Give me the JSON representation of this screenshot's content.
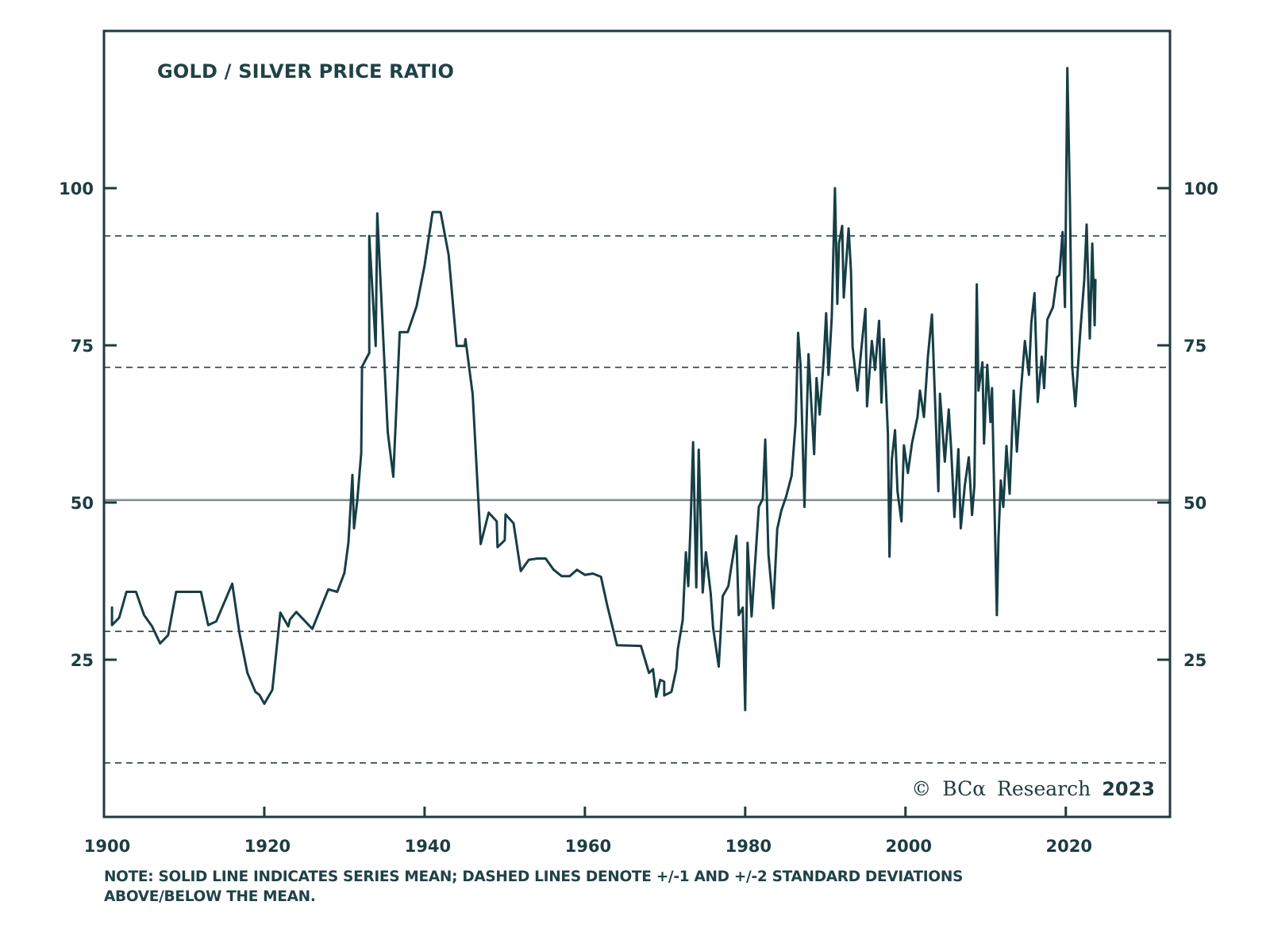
{
  "chart_data": {
    "type": "line",
    "title": "GOLD / SILVER PRICE RATIO",
    "xlabel": "",
    "ylabel": "",
    "xlim": [
      1900,
      2033
    ],
    "ylim": [
      0,
      125
    ],
    "grid": false,
    "legend": "none",
    "x_ticks": [
      1900,
      1920,
      1940,
      1960,
      1980,
      2000,
      2020
    ],
    "x_tick_labels": [
      "1900",
      "1920",
      "1940",
      "1960",
      "1980",
      "2000",
      "2020"
    ],
    "y_ticks": [
      25,
      50,
      75,
      100
    ],
    "y_tick_labels_left": [
      "25",
      "50",
      "75",
      "100"
    ],
    "y_tick_labels_right": [
      "25",
      "50",
      "75",
      "100"
    ],
    "reference_lines": [
      {
        "name": "mean",
        "style": "solid",
        "value": 50.4
      },
      {
        "name": "+1 standard deviation",
        "style": "dashed",
        "value": 71.5
      },
      {
        "name": "+2 standard deviations",
        "style": "dashed",
        "value": 92.4
      },
      {
        "name": "-1 standard deviation",
        "style": "dashed",
        "value": 29.5
      },
      {
        "name": "-2 standard deviations",
        "style": "dashed",
        "value": 8.6
      }
    ],
    "series": [
      {
        "name": "Gold / Silver price ratio",
        "color": "#163e45",
        "points": [
          [
            1901.0,
            33.3
          ],
          [
            1901.0,
            30.5
          ],
          [
            1901.9,
            31.7
          ],
          [
            1902.8,
            35.8
          ],
          [
            1904.0,
            35.8
          ],
          [
            1905.0,
            32.1
          ],
          [
            1906.0,
            30.3
          ],
          [
            1907.0,
            27.6
          ],
          [
            1908.0,
            28.9
          ],
          [
            1909.0,
            35.8
          ],
          [
            1912.1,
            35.8
          ],
          [
            1913.0,
            30.5
          ],
          [
            1914.0,
            31.1
          ],
          [
            1916.0,
            37.1
          ],
          [
            1916.9,
            29.2
          ],
          [
            1917.9,
            22.9
          ],
          [
            1918.9,
            19.9
          ],
          [
            1919.4,
            19.4
          ],
          [
            1920.0,
            18.0
          ],
          [
            1921.0,
            20.2
          ],
          [
            1922.0,
            32.5
          ],
          [
            1923.0,
            30.3
          ],
          [
            1923.2,
            31.4
          ],
          [
            1924.0,
            32.6
          ],
          [
            1926.0,
            29.9
          ],
          [
            1928.0,
            36.2
          ],
          [
            1929.1,
            35.8
          ],
          [
            1930.0,
            38.8
          ],
          [
            1930.5,
            43.7
          ],
          [
            1931.0,
            54.4
          ],
          [
            1931.2,
            45.9
          ],
          [
            1931.6,
            50.3
          ],
          [
            1932.1,
            57.9
          ],
          [
            1932.2,
            71.6
          ],
          [
            1933.1,
            73.8
          ],
          [
            1933.1,
            92.4
          ],
          [
            1933.9,
            74.9
          ],
          [
            1934.1,
            96.0
          ],
          [
            1935.4,
            61.2
          ],
          [
            1936.1,
            54.1
          ],
          [
            1936.9,
            77.1
          ],
          [
            1937.9,
            77.1
          ],
          [
            1939.0,
            81.2
          ],
          [
            1940.0,
            87.7
          ],
          [
            1941.0,
            96.2
          ],
          [
            1942.0,
            96.2
          ],
          [
            1943.0,
            89.4
          ],
          [
            1944.0,
            74.9
          ],
          [
            1945.0,
            74.9
          ],
          [
            1945.1,
            76.0
          ],
          [
            1946.0,
            67.2
          ],
          [
            1947.0,
            43.4
          ],
          [
            1948.0,
            48.4
          ],
          [
            1949.0,
            47.0
          ],
          [
            1949.1,
            42.9
          ],
          [
            1950.0,
            44.0
          ],
          [
            1950.1,
            48.1
          ],
          [
            1951.1,
            46.7
          ],
          [
            1952.0,
            39.1
          ],
          [
            1953.0,
            40.9
          ],
          [
            1954.1,
            41.1
          ],
          [
            1955.1,
            41.1
          ],
          [
            1956.1,
            39.3
          ],
          [
            1957.1,
            38.3
          ],
          [
            1958.1,
            38.3
          ],
          [
            1959.0,
            39.3
          ],
          [
            1960.0,
            38.5
          ],
          [
            1961.0,
            38.7
          ],
          [
            1962.0,
            38.2
          ],
          [
            1962.8,
            33.6
          ],
          [
            1964.0,
            27.3
          ],
          [
            1967.0,
            27.2
          ],
          [
            1968.0,
            22.9
          ],
          [
            1968.5,
            23.5
          ],
          [
            1968.9,
            19.1
          ],
          [
            1969.4,
            21.8
          ],
          [
            1969.9,
            21.5
          ],
          [
            1969.9,
            19.3
          ],
          [
            1970.8,
            19.9
          ],
          [
            1971.4,
            23.5
          ],
          [
            1971.6,
            26.7
          ],
          [
            1972.2,
            31.3
          ],
          [
            1972.6,
            42.1
          ],
          [
            1972.9,
            36.7
          ],
          [
            1973.2,
            47.2
          ],
          [
            1973.5,
            59.6
          ],
          [
            1973.9,
            36.5
          ],
          [
            1974.2,
            58.4
          ],
          [
            1974.7,
            35.7
          ],
          [
            1975.1,
            42.1
          ],
          [
            1975.7,
            35.5
          ],
          [
            1976.0,
            30.1
          ],
          [
            1976.7,
            23.9
          ],
          [
            1977.2,
            35.1
          ],
          [
            1977.9,
            36.7
          ],
          [
            1978.2,
            39.2
          ],
          [
            1978.9,
            44.7
          ],
          [
            1979.2,
            32.1
          ],
          [
            1979.7,
            33.3
          ],
          [
            1980.0,
            17.0
          ],
          [
            1980.3,
            43.6
          ],
          [
            1980.8,
            31.9
          ],
          [
            1981.2,
            39.6
          ],
          [
            1981.7,
            49.3
          ],
          [
            1982.2,
            50.6
          ],
          [
            1982.5,
            60.0
          ],
          [
            1982.9,
            41.8
          ],
          [
            1983.5,
            33.2
          ],
          [
            1984.0,
            45.8
          ],
          [
            1984.5,
            48.7
          ],
          [
            1985.1,
            50.9
          ],
          [
            1985.8,
            54.3
          ],
          [
            1986.3,
            62.8
          ],
          [
            1986.6,
            77.0
          ],
          [
            1986.9,
            71.9
          ],
          [
            1987.4,
            49.3
          ],
          [
            1987.6,
            60.2
          ],
          [
            1987.9,
            73.6
          ],
          [
            1988.6,
            57.7
          ],
          [
            1988.9,
            69.8
          ],
          [
            1989.3,
            64.0
          ],
          [
            1989.8,
            72.8
          ],
          [
            1990.1,
            80.1
          ],
          [
            1990.4,
            70.3
          ],
          [
            1990.8,
            79.5
          ],
          [
            1991.2,
            100.0
          ],
          [
            1991.5,
            81.6
          ],
          [
            1991.7,
            91.2
          ],
          [
            1992.1,
            94.0
          ],
          [
            1992.3,
            82.6
          ],
          [
            1992.9,
            93.6
          ],
          [
            1993.2,
            86.8
          ],
          [
            1993.4,
            74.8
          ],
          [
            1994.0,
            67.8
          ],
          [
            1994.5,
            74.5
          ],
          [
            1995.0,
            80.8
          ],
          [
            1995.2,
            65.3
          ],
          [
            1995.8,
            75.7
          ],
          [
            1996.2,
            71.1
          ],
          [
            1996.7,
            78.9
          ],
          [
            1997.0,
            65.9
          ],
          [
            1997.3,
            76.0
          ],
          [
            1997.8,
            61.0
          ],
          [
            1998.0,
            41.4
          ],
          [
            1998.3,
            56.9
          ],
          [
            1998.7,
            61.5
          ],
          [
            1999.0,
            51.8
          ],
          [
            1999.5,
            47.0
          ],
          [
            1999.8,
            59.1
          ],
          [
            2000.3,
            54.7
          ],
          [
            2000.8,
            59.4
          ],
          [
            2001.5,
            63.6
          ],
          [
            2001.8,
            67.8
          ],
          [
            2002.3,
            63.6
          ],
          [
            2002.8,
            73.2
          ],
          [
            2003.3,
            79.9
          ],
          [
            2003.6,
            69.4
          ],
          [
            2004.1,
            51.8
          ],
          [
            2004.3,
            67.3
          ],
          [
            2004.9,
            56.5
          ],
          [
            2005.4,
            64.8
          ],
          [
            2005.7,
            58.5
          ],
          [
            2006.1,
            47.7
          ],
          [
            2006.6,
            58.5
          ],
          [
            2006.9,
            45.9
          ],
          [
            2007.4,
            52.7
          ],
          [
            2007.9,
            57.2
          ],
          [
            2008.3,
            48.0
          ],
          [
            2008.6,
            52.7
          ],
          [
            2008.9,
            84.7
          ],
          [
            2009.1,
            67.8
          ],
          [
            2009.6,
            72.3
          ],
          [
            2009.8,
            59.4
          ],
          [
            2010.2,
            71.9
          ],
          [
            2010.6,
            62.8
          ],
          [
            2010.8,
            68.2
          ],
          [
            2011.1,
            49.3
          ],
          [
            2011.4,
            32.1
          ],
          [
            2011.6,
            44.3
          ],
          [
            2011.9,
            53.5
          ],
          [
            2012.2,
            49.3
          ],
          [
            2012.6,
            59.0
          ],
          [
            2013.0,
            51.4
          ],
          [
            2013.5,
            67.8
          ],
          [
            2013.9,
            58.1
          ],
          [
            2014.4,
            67.8
          ],
          [
            2014.9,
            75.7
          ],
          [
            2015.4,
            70.3
          ],
          [
            2015.7,
            78.6
          ],
          [
            2016.1,
            83.3
          ],
          [
            2016.5,
            66.0
          ],
          [
            2017.0,
            73.2
          ],
          [
            2017.3,
            68.2
          ],
          [
            2017.7,
            79.1
          ],
          [
            2018.4,
            81.1
          ],
          [
            2018.9,
            85.8
          ],
          [
            2019.2,
            86.2
          ],
          [
            2019.6,
            93.0
          ],
          [
            2019.9,
            81.1
          ],
          [
            2020.2,
            119.1
          ],
          [
            2020.5,
            98.7
          ],
          [
            2020.8,
            71.5
          ],
          [
            2021.2,
            65.3
          ],
          [
            2021.8,
            77.0
          ],
          [
            2022.3,
            85.4
          ],
          [
            2022.6,
            94.2
          ],
          [
            2023.0,
            76.1
          ],
          [
            2023.3,
            91.2
          ],
          [
            2023.6,
            78.2
          ],
          [
            2023.7,
            85.4
          ]
        ]
      }
    ],
    "annotations": [
      {
        "text": "© BCA Research 2023",
        "position": "bottom-right"
      }
    ]
  },
  "copyright": {
    "symbol": "©",
    "brand": "BCα",
    "word": "Research",
    "year": "2023"
  },
  "note": {
    "line1": "NOTE: SOLID LINE INDICATES SERIES MEAN; DASHED LINES DENOTE +/-1 AND +/-2 STANDARD DEVIATIONS",
    "line2": "ABOVE/BELOW THE MEAN."
  }
}
